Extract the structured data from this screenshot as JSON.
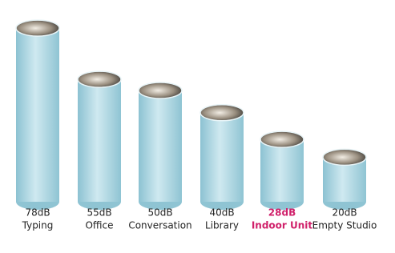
{
  "chart_data": {
    "type": "cylinder",
    "categories": [
      "Typing",
      "Office",
      "Conversation",
      "Library",
      "Indoor Unit",
      "Empty Studio"
    ],
    "values": [
      78,
      55,
      50,
      40,
      28,
      20
    ],
    "value_labels": [
      "78dB",
      "55dB",
      "50dB",
      "40dB",
      "28dB",
      "20dB"
    ],
    "color": "#a9d6e2",
    "label_colors": [
      "#222222",
      "#222222",
      "#222222",
      "#222222",
      "#d0206a",
      "#222222"
    ]
  }
}
